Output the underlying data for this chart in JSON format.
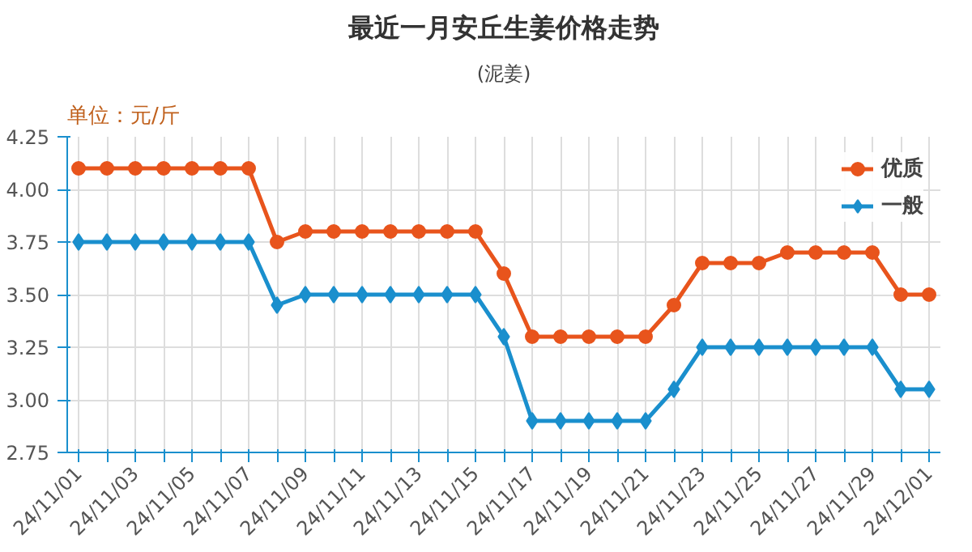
{
  "chart_data": {
    "type": "line",
    "title": "最近一月安丘生姜价格走势",
    "subtitle": "(泥姜)",
    "ylabel": "单位：元/斤",
    "categories": [
      "24/11/01",
      null,
      "24/11/03",
      null,
      "24/11/05",
      null,
      "24/11/07",
      null,
      "24/11/09",
      null,
      "24/11/11",
      null,
      "24/11/13",
      null,
      "24/11/15",
      null,
      "24/11/17",
      null,
      "24/11/19",
      null,
      "24/11/21",
      null,
      "24/11/23",
      null,
      "24/11/25",
      null,
      "24/11/27",
      null,
      "24/11/29",
      null,
      "24/12/01"
    ],
    "series": [
      {
        "name": "优质",
        "color": "#e8541c",
        "marker": "circle",
        "values": [
          4.1,
          4.1,
          4.1,
          4.1,
          4.1,
          4.1,
          4.1,
          3.75,
          3.8,
          3.8,
          3.8,
          3.8,
          3.8,
          3.8,
          3.8,
          3.6,
          3.3,
          3.3,
          3.3,
          3.3,
          3.3,
          3.45,
          3.65,
          3.65,
          3.65,
          3.7,
          3.7,
          3.7,
          3.7,
          3.5,
          3.5
        ]
      },
      {
        "name": "一般",
        "color": "#1a8fcd",
        "marker": "diamond",
        "values": [
          3.75,
          3.75,
          3.75,
          3.75,
          3.75,
          3.75,
          3.75,
          3.45,
          3.5,
          3.5,
          3.5,
          3.5,
          3.5,
          3.5,
          3.5,
          3.3,
          2.9,
          2.9,
          2.9,
          2.9,
          2.9,
          3.05,
          3.25,
          3.25,
          3.25,
          3.25,
          3.25,
          3.25,
          3.25,
          3.05,
          3.05
        ]
      }
    ],
    "ylim": [
      2.75,
      4.25
    ],
    "yticks": [
      2.75,
      {
        "value": 3,
        "label": "3.00"
      },
      3.25,
      {
        "value": 3.5,
        "label": "3.50"
      },
      3.75,
      {
        "value": 4,
        "label": "4.00"
      },
      4.25
    ],
    "grid": true,
    "legend": "top right",
    "line_style": "solid"
  }
}
